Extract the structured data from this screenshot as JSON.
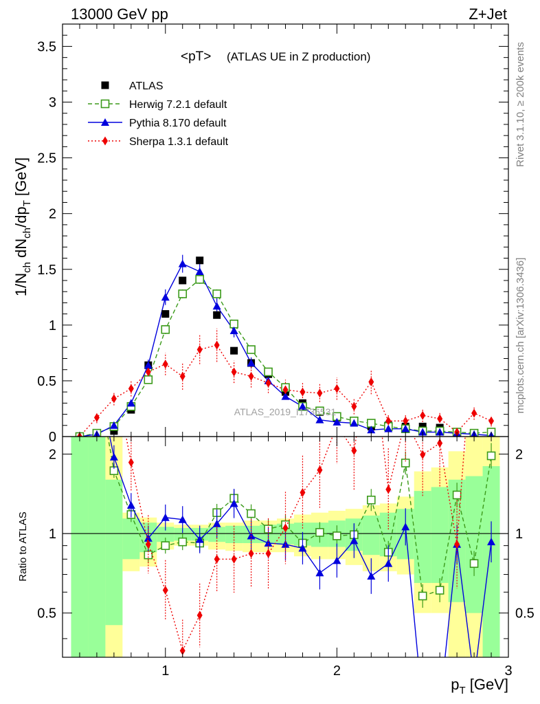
{
  "header": {
    "left": "13000 GeV pp",
    "right": "Z+Jet"
  },
  "title": {
    "main": "<pT>",
    "sub": "(ATLAS UE in Z production)"
  },
  "side_labels": {
    "rivet": "Rivet 3.1.10, ≥ 200k events",
    "mcplots": "mcplots.cern.ch [arXiv:1306.3436]"
  },
  "watermark": "ATLAS_2019_I1736531",
  "axes": {
    "ylabel_top": "1/N_ch dN_ch/dp_T [GeV]",
    "ylabel_bottom": "Ratio to ATLAS",
    "xlabel": "p_T [GeV]"
  },
  "chart_data": {
    "type": "scatter",
    "top": {
      "xlim": [
        0.4,
        3.0
      ],
      "ylim": [
        0,
        3.7
      ],
      "yticks": [
        0,
        0.5,
        1,
        1.5,
        2,
        2.5,
        3,
        3.5
      ],
      "ytick_labels": [
        "0",
        "0.5",
        "1",
        "1.5",
        "2",
        "2.5",
        "3",
        "3.5"
      ]
    },
    "ratio": {
      "ylim": [
        0.34,
        2.33
      ],
      "log": true,
      "yticks": [
        0.5,
        1,
        2
      ],
      "ytick_labels": [
        "0.5",
        "1",
        "2"
      ],
      "xticks": [
        1,
        2,
        3
      ],
      "xtick_labels": [
        "1",
        "2",
        "3"
      ]
    },
    "legend": {
      "placement": "top-left"
    },
    "x": [
      0.5,
      0.6,
      0.7,
      0.8,
      0.9,
      1.0,
      1.1,
      1.2,
      1.3,
      1.4,
      1.5,
      1.6,
      1.7,
      1.8,
      1.9,
      2.0,
      2.1,
      2.2,
      2.3,
      2.4,
      2.5,
      2.6,
      2.7,
      2.8,
      2.9
    ],
    "series": [
      {
        "name": "ATLAS",
        "color": "#000000",
        "values": [
          0.0,
          0.0,
          0.05,
          0.24,
          0.64,
          1.1,
          1.4,
          1.58,
          1.09,
          0.77,
          0.66,
          0.56,
          0.4,
          0.3,
          0.22,
          0.17,
          0.13,
          0.09,
          0.1,
          0.09,
          0.09,
          0.08,
          0.04,
          0.03,
          0.02
        ]
      },
      {
        "name": "Herwig 7.2.1 default",
        "color": "#3b9a1a",
        "values": [
          0.0,
          0.03,
          0.09,
          0.27,
          0.51,
          0.96,
          1.28,
          1.41,
          1.28,
          1.01,
          0.78,
          0.58,
          0.44,
          0.27,
          0.23,
          0.18,
          0.14,
          0.12,
          0.09,
          0.07,
          0.05,
          0.05,
          0.04,
          0.03,
          0.04
        ]
      },
      {
        "name": "Pythia 8.170 default",
        "color": "#0000dd",
        "values": [
          0.0,
          0.02,
          0.1,
          0.3,
          0.64,
          1.25,
          1.55,
          1.48,
          1.17,
          0.95,
          0.66,
          0.5,
          0.36,
          0.27,
          0.15,
          0.13,
          0.12,
          0.06,
          0.07,
          0.07,
          0.04,
          0.04,
          0.03,
          0.02,
          0.01
        ]
      },
      {
        "name": "Sherpa 1.3.1 default",
        "color": "#ee0000",
        "values": [
          0.0,
          0.17,
          0.34,
          0.43,
          0.58,
          0.65,
          0.54,
          0.78,
          0.82,
          0.58,
          0.54,
          0.48,
          0.42,
          0.4,
          0.39,
          0.43,
          0.27,
          0.49,
          0.14,
          0.14,
          0.19,
          0.16,
          0.04,
          0.21,
          0.14
        ]
      }
    ],
    "ratio_series": [
      {
        "name": "Herwig 7.2.1 default",
        "values": [
          null,
          null,
          1.73,
          1.18,
          0.83,
          0.9,
          0.93,
          0.92,
          1.2,
          1.36,
          1.19,
          1.04,
          1.08,
          0.92,
          1.01,
          0.98,
          0.99,
          1.34,
          0.85,
          1.85,
          0.58,
          0.61,
          1.4,
          0.77,
          1.97
        ]
      },
      {
        "name": "Pythia 8.170 default",
        "values": [
          null,
          null,
          1.95,
          1.28,
          0.96,
          1.15,
          1.13,
          0.95,
          1.09,
          1.3,
          0.98,
          0.92,
          0.91,
          0.88,
          0.71,
          0.79,
          0.94,
          0.69,
          0.77,
          1.06,
          0.22,
          0.22,
          0.91,
          0.28,
          0.93
        ]
      },
      {
        "name": "Sherpa 1.3.1 default",
        "values": [
          null,
          null,
          null,
          1.86,
          0.91,
          0.61,
          0.36,
          0.49,
          0.8,
          0.8,
          0.84,
          0.84,
          1.05,
          1.43,
          1.74,
          2.57,
          2.06,
          5.3,
          1.47,
          2.7,
          1.99,
          2.2,
          0.91,
          6.5,
          6.5
        ]
      }
    ]
  }
}
